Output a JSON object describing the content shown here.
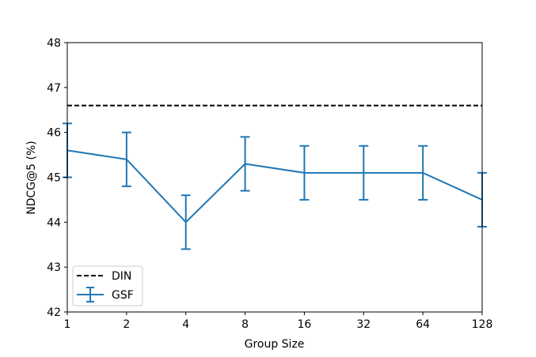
{
  "chart_data": {
    "type": "line",
    "xlabel": "Group Size",
    "ylabel": "NDCG@5 (%)",
    "categories": [
      "1",
      "2",
      "4",
      "8",
      "16",
      "32",
      "64",
      "128"
    ],
    "ylim": [
      42,
      48
    ],
    "yticks": [
      "42",
      "43",
      "44",
      "45",
      "46",
      "47",
      "48"
    ],
    "grid": false,
    "legend_position": "lower-left",
    "series": [
      {
        "name": "GSF",
        "style": "solid-with-errorbars",
        "color": "#1f77b4",
        "values": [
          45.6,
          45.4,
          44.0,
          45.3,
          45.1,
          45.1,
          45.1,
          44.5
        ],
        "error": [
          0.6,
          0.6,
          0.6,
          0.6,
          0.6,
          0.6,
          0.6,
          0.6
        ]
      },
      {
        "name": "DIN",
        "style": "dashed-constant",
        "color": "#000000",
        "value": 46.6
      }
    ],
    "legend": [
      "DIN",
      "GSF"
    ]
  }
}
